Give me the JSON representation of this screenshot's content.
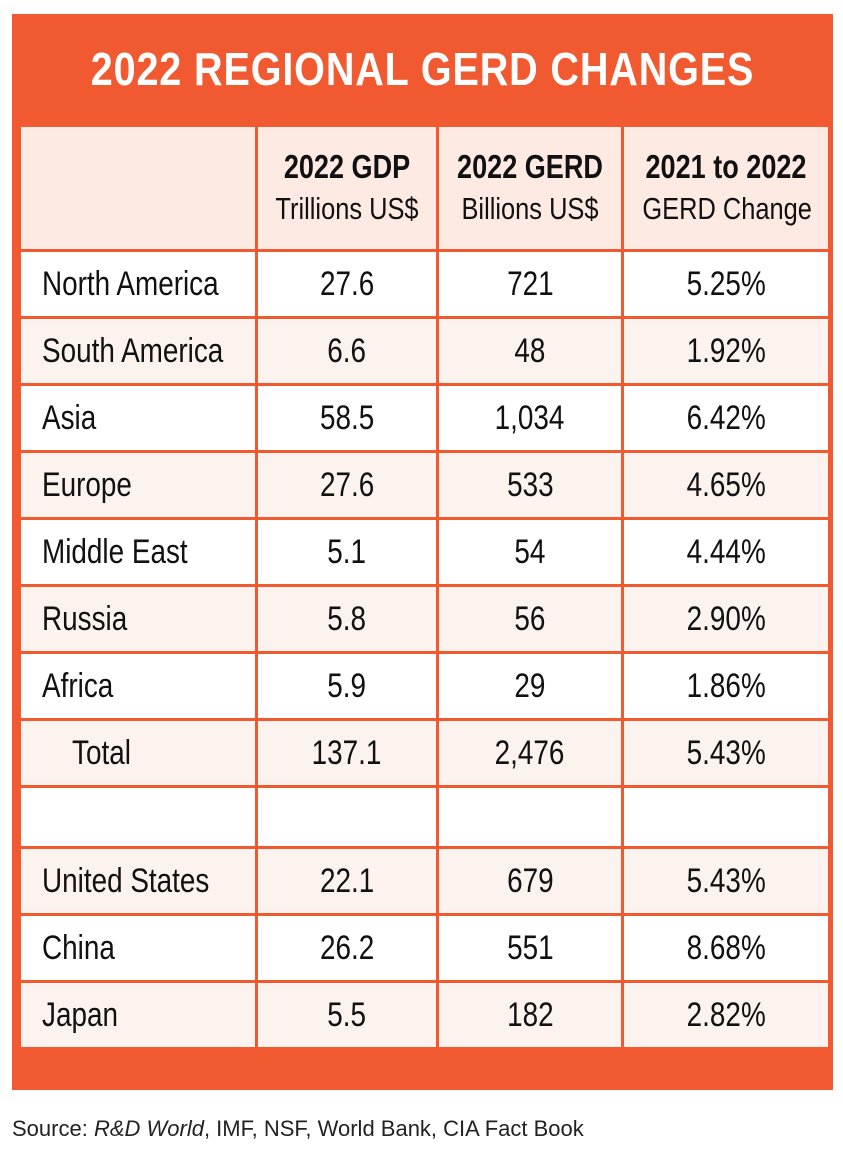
{
  "colors": {
    "accent": "#f15a31",
    "header_fill": "#fdebe3",
    "alt_row_fill": "#fdf3ee"
  },
  "chart_data": {
    "type": "table",
    "title": "2022 REGIONAL GERD CHANGES",
    "columns": [
      {
        "line1": "",
        "line2": ""
      },
      {
        "line1": "2022 GDP",
        "line2": "Trillions US$"
      },
      {
        "line1": "2022 GERD",
        "line2": "Billions US$"
      },
      {
        "line1": "2021 to 2022",
        "line2": "GERD Change"
      }
    ],
    "rows": [
      {
        "label": "North America",
        "gdp": "27.6",
        "gerd": "721",
        "change": "5.25%"
      },
      {
        "label": "South America",
        "gdp": "6.6",
        "gerd": "48",
        "change": "1.92%"
      },
      {
        "label": "Asia",
        "gdp": "58.5",
        "gerd": "1,034",
        "change": "6.42%"
      },
      {
        "label": "Europe",
        "gdp": "27.6",
        "gerd": "533",
        "change": "4.65%"
      },
      {
        "label": "Middle East",
        "gdp": "5.1",
        "gerd": "54",
        "change": "4.44%"
      },
      {
        "label": "Russia",
        "gdp": "5.8",
        "gerd": "56",
        "change": "2.90%"
      },
      {
        "label": "Africa",
        "gdp": "5.9",
        "gerd": "29",
        "change": "1.86%"
      },
      {
        "label": "Total",
        "gdp": "137.1",
        "gerd": "2,476",
        "change": "5.43%"
      }
    ],
    "country_rows": [
      {
        "label": "United States",
        "gdp": "22.1",
        "gerd": "679",
        "change": "5.43%"
      },
      {
        "label": "China",
        "gdp": "26.2",
        "gerd": "551",
        "change": "8.68%"
      },
      {
        "label": "Japan",
        "gdp": "5.5",
        "gerd": "182",
        "change": "2.82%"
      }
    ]
  },
  "source": {
    "prefix": "Source: ",
    "italic": "R&D World",
    "rest": ", IMF, NSF, World Bank, CIA Fact Book"
  }
}
